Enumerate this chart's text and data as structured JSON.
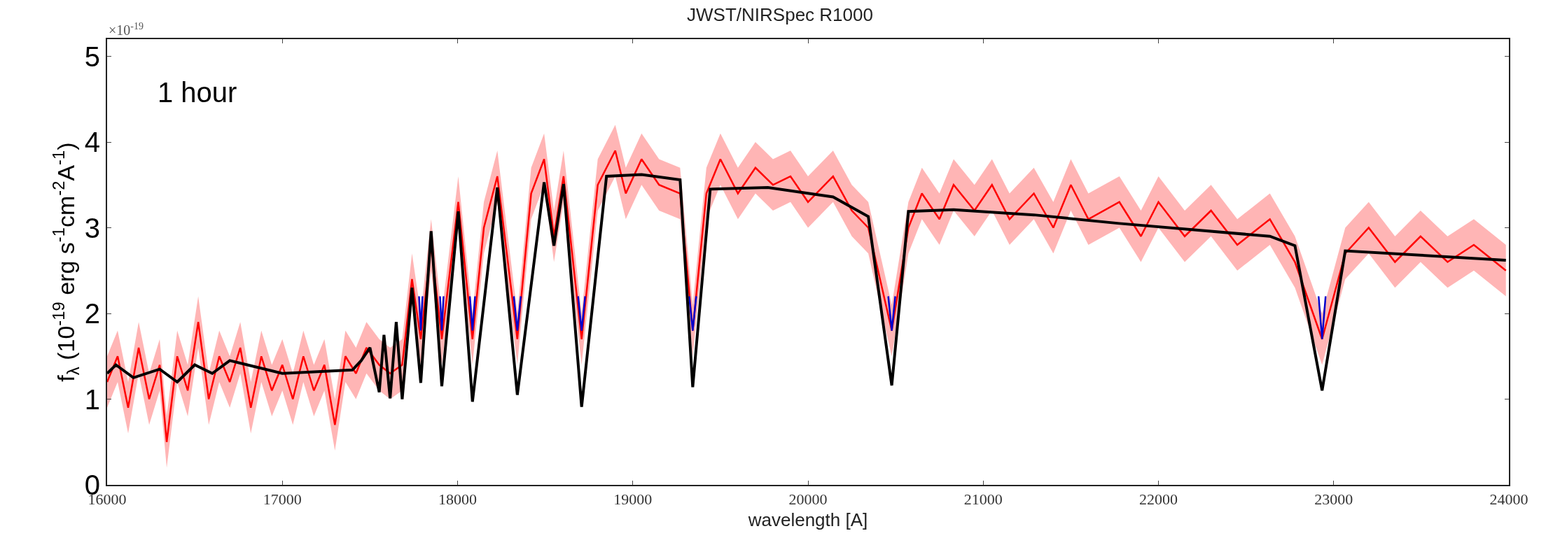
{
  "chart_data": {
    "type": "line",
    "title": "JWST/NIRSpec R1000",
    "xlabel": "wavelength [A]",
    "ylabel": "f$_{λ}$ (10$^{-19}$ erg s$^{-1}$cm$^{-2}$A$^{-1}$)",
    "annotations": [
      "×10$^{-19}$",
      "1 hour"
    ],
    "xlim": [
      16000,
      24000
    ],
    "xticks": [
      16000,
      17000,
      18000,
      19000,
      20000,
      21000,
      22000,
      23000,
      24000
    ],
    "ylim": [
      0,
      5.2
    ],
    "yticks": [
      0,
      1,
      2,
      3,
      4,
      5
    ],
    "series": [
      {
        "color": "#ff0000",
        "x": [
          16000,
          16060,
          16120,
          16180,
          16240,
          16300,
          16340,
          16400,
          16460,
          16520,
          16580,
          16640,
          16700,
          16760,
          16820,
          16880,
          16940,
          17000,
          17060,
          17120,
          17180,
          17240,
          17300,
          17360,
          17420,
          17480,
          17553,
          17615,
          17684,
          17740,
          17790,
          17849,
          17910,
          18004,
          18085,
          18150,
          18227,
          18341,
          18420,
          18494,
          18550,
          18605,
          18708,
          18800,
          18900,
          18960,
          19050,
          19150,
          19270,
          19342,
          19420,
          19500,
          19600,
          19700,
          19800,
          19900,
          20000,
          20143,
          20250,
          20344,
          20478,
          20573,
          20650,
          20750,
          20831,
          20950,
          21050,
          21150,
          21289,
          21400,
          21500,
          21600,
          21777,
          21900,
          22000,
          22150,
          22300,
          22450,
          22636,
          22779,
          22934,
          23066,
          23200,
          23350,
          23496,
          23650,
          23800,
          23983
        ],
        "values": [
          1.2,
          1.5,
          0.9,
          1.6,
          1.0,
          1.4,
          0.5,
          1.5,
          1.1,
          1.9,
          1.0,
          1.5,
          1.2,
          1.6,
          0.9,
          1.5,
          1.1,
          1.4,
          1.0,
          1.5,
          1.1,
          1.4,
          0.7,
          1.5,
          1.3,
          1.6,
          1.4,
          1.3,
          1.4,
          2.4,
          1.7,
          2.8,
          1.7,
          3.3,
          1.7,
          3.0,
          3.6,
          1.7,
          3.4,
          3.8,
          2.9,
          3.6,
          1.7,
          3.5,
          3.9,
          3.4,
          3.8,
          3.5,
          3.4,
          1.8,
          3.4,
          3.8,
          3.4,
          3.7,
          3.5,
          3.6,
          3.3,
          3.6,
          3.2,
          3.0,
          1.8,
          3.0,
          3.4,
          3.1,
          3.5,
          3.2,
          3.5,
          3.1,
          3.4,
          3.0,
          3.5,
          3.1,
          3.3,
          2.9,
          3.3,
          2.9,
          3.2,
          2.8,
          3.1,
          2.6,
          1.7,
          2.7,
          3.0,
          2.6,
          2.9,
          2.6,
          2.8,
          2.5
        ],
        "lower": [
          0.9,
          1.2,
          0.6,
          1.3,
          0.7,
          1.1,
          0.2,
          1.2,
          0.8,
          1.6,
          0.7,
          1.2,
          0.9,
          1.3,
          0.6,
          1.2,
          0.8,
          1.1,
          0.7,
          1.2,
          0.8,
          1.1,
          0.4,
          1.2,
          1.0,
          1.3,
          1.1,
          1.0,
          1.1,
          2.1,
          1.4,
          2.5,
          1.4,
          3.0,
          1.4,
          2.7,
          3.3,
          1.4,
          3.1,
          3.5,
          2.6,
          3.3,
          1.4,
          3.2,
          3.6,
          3.1,
          3.5,
          3.2,
          3.1,
          1.5,
          3.1,
          3.5,
          3.1,
          3.4,
          3.2,
          3.3,
          3.0,
          3.3,
          2.9,
          2.7,
          1.5,
          2.7,
          3.1,
          2.8,
          3.2,
          2.9,
          3.2,
          2.8,
          3.1,
          2.7,
          3.2,
          2.8,
          3.0,
          2.6,
          3.0,
          2.6,
          2.9,
          2.5,
          2.8,
          2.3,
          1.4,
          2.4,
          2.7,
          2.3,
          2.6,
          2.3,
          2.5,
          2.2
        ],
        "upper": [
          1.5,
          1.8,
          1.2,
          1.9,
          1.3,
          1.7,
          0.8,
          1.8,
          1.4,
          2.2,
          1.3,
          1.8,
          1.5,
          1.9,
          1.2,
          1.8,
          1.4,
          1.7,
          1.3,
          1.8,
          1.4,
          1.7,
          1.0,
          1.8,
          1.6,
          1.9,
          1.7,
          1.6,
          1.7,
          2.7,
          2.0,
          3.1,
          2.0,
          3.6,
          2.0,
          3.3,
          3.9,
          2.0,
          3.7,
          4.1,
          3.2,
          3.9,
          2.0,
          3.8,
          4.2,
          3.7,
          4.1,
          3.8,
          3.7,
          2.1,
          3.7,
          4.1,
          3.7,
          4.0,
          3.8,
          3.9,
          3.6,
          3.9,
          3.5,
          3.3,
          2.1,
          3.3,
          3.7,
          3.4,
          3.8,
          3.5,
          3.8,
          3.4,
          3.7,
          3.3,
          3.8,
          3.4,
          3.6,
          3.2,
          3.6,
          3.2,
          3.5,
          3.1,
          3.4,
          2.9,
          2.0,
          3.0,
          3.3,
          2.9,
          3.2,
          2.9,
          3.1,
          2.8
        ]
      },
      {
        "color": "#0000cc",
        "x": [
          17780,
          17790,
          17800,
          17801,
          17900,
          17910,
          17920,
          17921,
          18070,
          18085,
          18100,
          18101,
          18321,
          18341,
          18361,
          18362,
          18688,
          18708,
          18728,
          18729,
          19322,
          19342,
          19362,
          19363,
          20458,
          20478,
          20498,
          20499,
          22914,
          22934,
          22954
        ],
        "values": [
          2.2,
          1.8,
          2.2,
          null,
          2.2,
          1.8,
          2.2,
          null,
          2.2,
          1.8,
          2.2,
          null,
          2.2,
          1.8,
          2.2,
          null,
          2.2,
          1.8,
          2.2,
          null,
          2.2,
          1.8,
          2.2,
          null,
          2.2,
          1.8,
          2.2,
          null,
          2.2,
          1.7,
          2.2
        ]
      },
      {
        "color": "#000000",
        "x": [
          16000,
          16050,
          16150,
          16300,
          16400,
          16500,
          16600,
          16700,
          16800,
          17000,
          17200,
          17400,
          17450,
          17500,
          17553,
          17580,
          17615,
          17650,
          17684,
          17740,
          17790,
          17849,
          17910,
          18004,
          18085,
          18227,
          18341,
          18494,
          18550,
          18605,
          18708,
          18850,
          19050,
          19270,
          19342,
          19442,
          19771,
          20143,
          20344,
          20478,
          20573,
          20831,
          21289,
          21777,
          22636,
          22779,
          22934,
          23066,
          23496,
          23983
        ],
        "values": [
          1.3,
          1.4,
          1.25,
          1.35,
          1.2,
          1.4,
          1.3,
          1.45,
          1.4,
          1.3,
          1.32,
          1.34,
          1.45,
          1.6,
          1.08,
          1.75,
          1.01,
          1.9,
          1.0,
          2.3,
          1.19,
          2.96,
          1.15,
          3.19,
          0.97,
          3.47,
          1.05,
          3.53,
          2.79,
          3.51,
          0.91,
          3.6,
          3.62,
          3.56,
          1.14,
          3.45,
          3.47,
          3.36,
          3.13,
          1.16,
          3.19,
          3.21,
          3.15,
          3.05,
          2.9,
          2.79,
          1.1,
          2.73,
          2.68,
          2.62
        ]
      }
    ]
  }
}
